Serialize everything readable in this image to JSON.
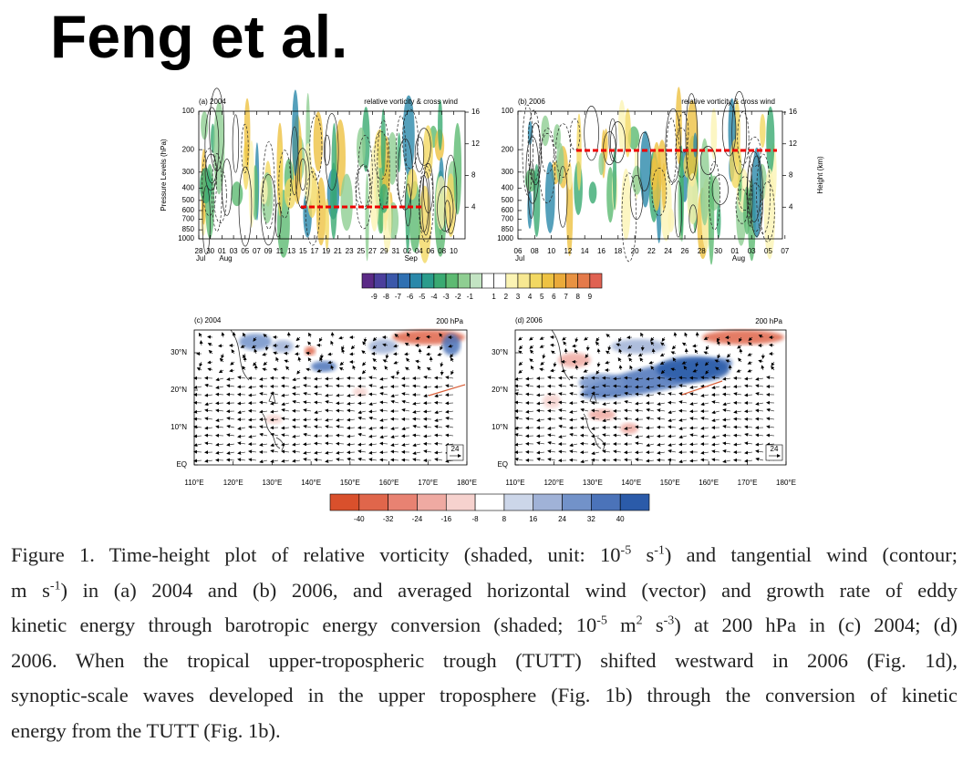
{
  "title": "Feng et al.",
  "panels": [
    {
      "label": "(a) 2004",
      "right_title": "relative vorticity & cross wind",
      "y_label": "Pressure Levels (hPa)",
      "yticks": [
        100,
        200,
        300,
        400,
        500,
        600,
        700,
        850,
        1000
      ],
      "height_ticks": [
        16,
        12,
        8,
        4
      ],
      "xticks": [
        "28",
        "30",
        "01",
        "03",
        "05",
        "07",
        "09",
        "11",
        "13",
        "15",
        "17",
        "19",
        "21",
        "23",
        "25",
        "27",
        "29",
        "31",
        "02",
        "04",
        "06",
        "08",
        "10"
      ],
      "months": [
        "Jul",
        null,
        "Aug",
        null,
        null,
        null,
        null,
        null,
        null,
        null,
        null,
        null,
        null,
        null,
        null,
        null,
        null,
        null,
        "Sep",
        null,
        null,
        null,
        null
      ]
    },
    {
      "label": "(b) 2006",
      "right_title": "relative vorticity & cross wind",
      "height_label": "Height (km)",
      "yticks": [
        100,
        200,
        300,
        400,
        500,
        600,
        700,
        850,
        1000
      ],
      "height_ticks": [
        16,
        12,
        8,
        4
      ],
      "xticks": [
        "06",
        "08",
        "10",
        "12",
        "14",
        "16",
        "18",
        "20",
        "22",
        "24",
        "26",
        "28",
        "30",
        "01",
        "03",
        "05",
        "07"
      ],
      "months": [
        "Jul",
        null,
        null,
        null,
        null,
        null,
        null,
        null,
        null,
        null,
        null,
        null,
        null,
        "Aug",
        null,
        null,
        null
      ]
    }
  ],
  "colorbar_vorticity": {
    "colors": [
      "#5b2a86",
      "#4b3f9c",
      "#3b58aa",
      "#2f70b2",
      "#2a88aa",
      "#2a9c8c",
      "#3aaa72",
      "#5dba72",
      "#8fce92",
      "#c3e4c3",
      "#ffffff",
      "#ffffff",
      "#fbf4b4",
      "#f7e892",
      "#f2d862",
      "#eec242",
      "#eaaa3a",
      "#e89242",
      "#e47a4a",
      "#e06252"
    ],
    "labels": [
      -9,
      -8,
      -7,
      -6,
      -5,
      -4,
      -3,
      -2,
      -1,
      1,
      2,
      3,
      4,
      5,
      6,
      7,
      8,
      9
    ]
  },
  "maps": [
    {
      "label": "(c) 2004",
      "level": "200 hPa",
      "ref_vector": "24",
      "xticks": [
        "110°E",
        "120°E",
        "130°E",
        "140°E",
        "150°E",
        "160°E",
        "170°E",
        "180°E"
      ],
      "yticks": [
        "EQ",
        "10°N",
        "20°N",
        "30°N"
      ]
    },
    {
      "label": "(d) 2006",
      "level": "200 hPa",
      "ref_vector": "24",
      "xticks": [
        "110°E",
        "120°E",
        "130°E",
        "140°E",
        "150°E",
        "160°E",
        "170°E",
        "180°E"
      ],
      "yticks": [
        "EQ",
        "10°N",
        "20°N",
        "30°N"
      ]
    }
  ],
  "colorbar_energy": {
    "colors": [
      "#d9502c",
      "#e0664b",
      "#e88272",
      "#efaaa2",
      "#f6d2ce",
      "#ffffff",
      "#ccd6e9",
      "#a0b2d7",
      "#7292c9",
      "#4b73b9",
      "#2b5ba9"
    ],
    "labels": [
      -40,
      -32,
      -24,
      -16,
      -8,
      8,
      16,
      24,
      32,
      40
    ]
  },
  "caption": {
    "lines": [
      [
        {
          "text": "Figure 1. Time-height plot of relative vorticity (shaded, unit: 10"
        },
        {
          "sup": "-5"
        },
        {
          "text": " s"
        },
        {
          "sup": "-1"
        },
        {
          "text": ") and tangential wind (contour;"
        }
      ],
      [
        {
          "text": "m s"
        },
        {
          "sup": "-1"
        },
        {
          "text": ") in (a) 2004 and (b) 2006, and averaged horizontal wind (vector) and growth rate of eddy"
        }
      ],
      [
        {
          "text": "kinetic energy through barotropic energy conversion (shaded; 10"
        },
        {
          "sup": "-5"
        },
        {
          "text": " m"
        },
        {
          "sup": "2"
        },
        {
          "text": " s"
        },
        {
          "sup": "-3"
        },
        {
          "text": ") at 200 hPa in (c) 2004; (d)"
        }
      ],
      [
        {
          "text": "2006. When the tropical upper-tropospheric trough (TUTT) shifted westward in 2006 (Fig. 1d),"
        }
      ],
      [
        {
          "text": "synoptic-scale waves developed in the upper troposphere (Fig. 1b) through the conversion of kinetic"
        }
      ],
      [
        {
          "text": "energy from the TUTT (Fig. 1b)."
        }
      ]
    ]
  }
}
